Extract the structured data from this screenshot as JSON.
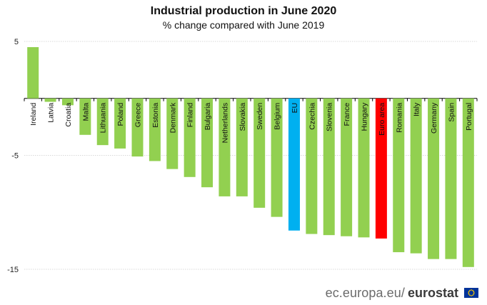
{
  "chart_data": {
    "type": "bar",
    "title": "Industrial production in June 2020",
    "subtitle": "% change compared with June 2019",
    "categories": [
      "Ireland",
      "Latvia",
      "Croatia",
      "Malta",
      "Lithuania",
      "Poland",
      "Greece",
      "Estonia",
      "Denmark",
      "Finland",
      "Bulgaria",
      "Netherlands",
      "Slovakia",
      "Sweden",
      "Belgium",
      "EU",
      "Czechia",
      "Slovenia",
      "France",
      "Hungary",
      "Euro area",
      "Romania",
      "Italy",
      "Germany",
      "Spain",
      "Portugal"
    ],
    "values": [
      4.5,
      -0.3,
      -0.6,
      -3.2,
      -4.1,
      -4.4,
      -5.1,
      -5.5,
      -6.2,
      -6.9,
      -7.8,
      -8.6,
      -8.6,
      -9.6,
      -10.4,
      -11.6,
      -11.9,
      -12.0,
      -12.1,
      -12.2,
      -12.3,
      -13.5,
      -13.6,
      -14.1,
      -14.1,
      -14.8
    ],
    "ylim": [
      -15,
      5
    ],
    "yticks": [
      5,
      -5,
      -15
    ],
    "xlabel": "",
    "ylabel": "",
    "colors": {
      "default": "#92d050",
      "EU": "#00b0f0",
      "Euro area": "#ff0000"
    },
    "grid": true,
    "legend": "none"
  },
  "source": {
    "text": "ec.europa.eu/",
    "brand": "eurostat"
  }
}
